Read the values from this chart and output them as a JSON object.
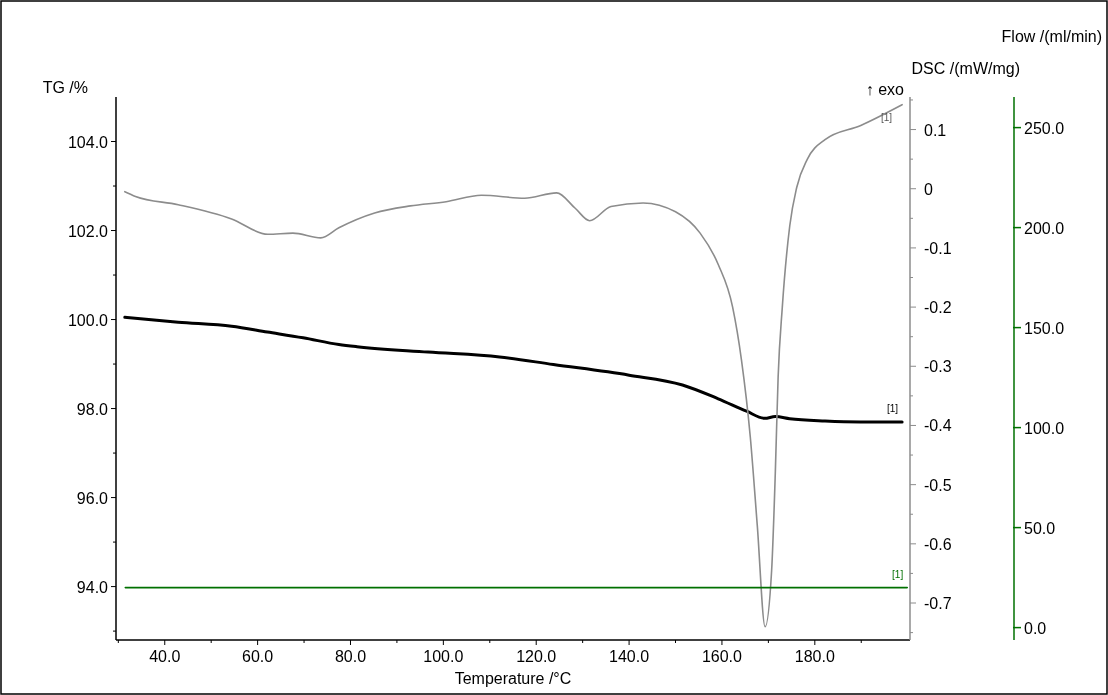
{
  "chart_data": {
    "type": "line",
    "xlabel": "Temperature /°C",
    "ylabel": "TG /%",
    "y2label": "DSC /(mW/mg)",
    "y3label": "Flow /(ml/min)",
    "xlim": [
      29.5,
      200.5
    ],
    "xticks": [
      {
        "value": 30,
        "label": null
      },
      {
        "value": 40,
        "label": "40.0"
      },
      {
        "value": 50,
        "label": null
      },
      {
        "value": 60,
        "label": "60.0"
      },
      {
        "value": 70,
        "label": null
      },
      {
        "value": 80,
        "label": "80.0"
      },
      {
        "value": 90,
        "label": null
      },
      {
        "value": 100,
        "label": "100.0"
      },
      {
        "value": 110,
        "label": null
      },
      {
        "value": 120,
        "label": "120.0"
      },
      {
        "value": 130,
        "label": null
      },
      {
        "value": 140,
        "label": "140.0"
      },
      {
        "value": 150,
        "label": null
      },
      {
        "value": 160,
        "label": "160.0"
      },
      {
        "value": 170,
        "label": null
      },
      {
        "value": 180,
        "label": "180.0"
      },
      {
        "value": 190,
        "label": null
      }
    ],
    "ylim": [
      92.8,
      105.0
    ],
    "yticks": [
      {
        "value": 93,
        "label": null
      },
      {
        "value": 94,
        "label": "94.0"
      },
      {
        "value": 95,
        "label": null
      },
      {
        "value": 96,
        "label": "96.0"
      },
      {
        "value": 97,
        "label": null
      },
      {
        "value": 98,
        "label": "98.0"
      },
      {
        "value": 99,
        "label": null
      },
      {
        "value": 100,
        "label": "100.0"
      },
      {
        "value": 101,
        "label": null
      },
      {
        "value": 102,
        "label": "102.0"
      },
      {
        "value": 103,
        "label": null
      },
      {
        "value": 104,
        "label": "104.0"
      }
    ],
    "y2lim": [
      -0.7625,
      0.155
    ],
    "y2ticks": [
      {
        "value": -0.75,
        "label": null
      },
      -0.7,
      {
        "value": -0.65,
        "label": null
      },
      -0.6,
      {
        "value": -0.55,
        "label": null
      },
      -0.5,
      {
        "value": -0.45,
        "label": null
      },
      -0.4,
      {
        "value": -0.35,
        "label": null
      },
      -0.3,
      {
        "value": -0.25,
        "label": null
      },
      -0.2,
      {
        "value": -0.15,
        "label": null
      },
      -0.1,
      {
        "value": -0.05,
        "label": null
      },
      0,
      {
        "value": 0.05,
        "label": null
      },
      0.1,
      {
        "value": 0.15,
        "label": null
      }
    ],
    "y3lim": [
      -6.2,
      265.3
    ],
    "y3ticks": [
      {
        "value": 0,
        "label": "0.0"
      },
      {
        "value": 50,
        "label": "50.0"
      },
      {
        "value": 100,
        "label": "100.0"
      },
      {
        "value": 150,
        "label": "150.0"
      },
      {
        "value": 200,
        "label": "200.0"
      },
      {
        "value": 250,
        "label": "250.0"
      }
    ],
    "series": [
      {
        "color": "#000000",
        "x": [
          31.4,
          42.9,
          54.4,
          62.1,
          69.8,
          77.5,
          81.4,
          96.7,
          112.1,
          123.7,
          140,
          151.5,
          159.2,
          165.3,
          169.2,
          171.5,
          174.6,
          182.2,
          189.8,
          198.8
        ],
        "values": [
          100.05,
          99.94,
          99.85,
          99.72,
          99.59,
          99.44,
          99.39,
          99.27,
          99.16,
          98.99,
          98.75,
          98.53,
          98.22,
          97.94,
          97.78,
          97.82,
          97.77,
          97.72,
          97.7,
          97.7
        ]
      },
      {
        "color": "#8c8c8c",
        "axis": "y2",
        "x": [
          31.4,
          33.7,
          42.9,
          54.4,
          62.2,
          67.6,
          73.6,
          77.5,
          85.2,
          92.9,
          100.6,
          108.2,
          117.5,
          124.4,
          128.4,
          131.5,
          136.1,
          143,
          150,
          155.3,
          159.2,
          162.3,
          164.2,
          166.1,
          167.6,
          169.3,
          170.7,
          171.5,
          172.1,
          173,
          174.6,
          176.1,
          178.4,
          182.2,
          189.9,
          198.8
        ],
        "values": [
          -0.005,
          -0.013,
          -0.027,
          -0.051,
          -0.077,
          -0.075,
          -0.083,
          -0.066,
          -0.041,
          -0.029,
          -0.022,
          -0.011,
          -0.016,
          -0.007,
          -0.033,
          -0.054,
          -0.03,
          -0.024,
          -0.039,
          -0.075,
          -0.128,
          -0.2,
          -0.289,
          -0.419,
          -0.568,
          -0.74,
          -0.645,
          -0.478,
          -0.318,
          -0.2,
          -0.063,
          0.002,
          0.05,
          0.083,
          0.107,
          0.142
        ]
      },
      {
        "color": "#007000",
        "axis": "y3",
        "x": [
          31.5,
          199.9
        ],
        "values": [
          20,
          20
        ]
      }
    ],
    "annotations": [
      "↑ exo",
      "[1]",
      "[1]",
      "[1]"
    ]
  }
}
